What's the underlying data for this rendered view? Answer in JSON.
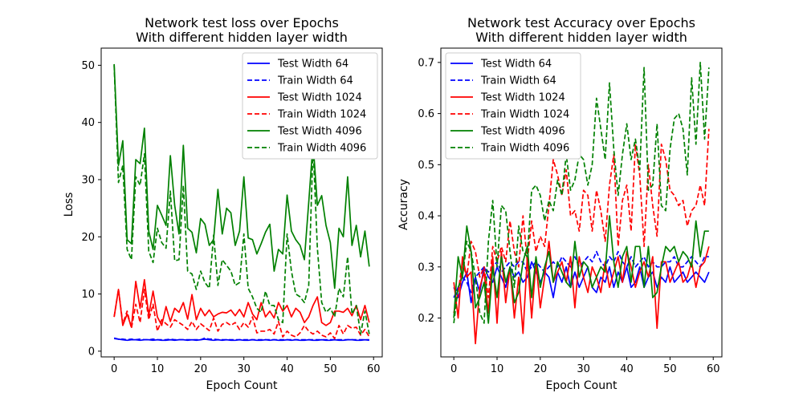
{
  "figure": {
    "background": "#ffffff"
  },
  "chart_data": [
    {
      "type": "line",
      "title_lines": [
        "Network test loss over Epochs",
        "With different hidden layer width"
      ],
      "xlabel": "Epoch Count",
      "ylabel": "Loss",
      "xlim": [
        -3,
        62
      ],
      "ylim": [
        -1,
        53
      ],
      "xticks": [
        0,
        10,
        20,
        30,
        40,
        50,
        60
      ],
      "yticks": [
        0,
        10,
        20,
        30,
        40,
        50
      ],
      "grid": false,
      "legend_position": "top-right",
      "series": [
        {
          "name": "Test Width 64",
          "color": "#0000ff",
          "dashed": false,
          "values": [
            2.2,
            2.1,
            2.0,
            1.9,
            2.0,
            2.0,
            1.9,
            2.0,
            2.0,
            1.9,
            2.0,
            1.9,
            1.9,
            2.0,
            1.9,
            2.0,
            2.0,
            1.9,
            2.0,
            1.9,
            2.0,
            2.1,
            2.0,
            1.9,
            2.0,
            1.9,
            2.0,
            1.9,
            1.9,
            2.0,
            1.9,
            1.9,
            2.0,
            1.9,
            1.9,
            2.0,
            1.9,
            2.0,
            1.9,
            1.9,
            2.0,
            1.9,
            2.0,
            1.9,
            1.9,
            2.0,
            1.9,
            1.9,
            2.0,
            1.9,
            1.9,
            2.0,
            1.9,
            1.9,
            2.0,
            2.0,
            1.9,
            1.9,
            2.0,
            1.9
          ]
        },
        {
          "name": "Train Width 64",
          "color": "#0000ff",
          "dashed": true,
          "values": [
            2.3,
            2.1,
            2.1,
            2.0,
            2.1,
            2.0,
            2.1,
            2.0,
            2.0,
            2.1,
            2.0,
            2.0,
            2.0,
            2.1,
            2.0,
            2.0,
            2.0,
            2.0,
            2.0,
            2.0,
            2.0,
            2.3,
            2.1,
            2.1,
            2.0,
            2.0,
            2.0,
            2.0,
            2.0,
            2.0,
            2.0,
            2.0,
            2.0,
            2.0,
            2.0,
            2.0,
            2.0,
            2.0,
            2.0,
            2.0,
            2.0,
            2.0,
            2.0,
            2.0,
            2.0,
            2.0,
            2.0,
            2.0,
            2.0,
            2.0,
            2.0,
            2.0,
            2.0,
            2.0,
            2.0,
            2.0,
            2.0,
            2.0,
            2.0,
            2.0
          ]
        },
        {
          "name": "Test Width 1024",
          "color": "#ff0000",
          "dashed": false,
          "values": [
            6.0,
            10.8,
            4.5,
            6.5,
            4.2,
            12.2,
            7.5,
            12.5,
            6.3,
            10.5,
            6.0,
            4.5,
            7.8,
            5.2,
            7.5,
            6.8,
            8.5,
            5.6,
            9.9,
            5.5,
            7.5,
            6.2,
            7.2,
            6.0,
            6.5,
            6.8,
            6.7,
            7.2,
            6.2,
            7.3,
            6.0,
            8.5,
            6.5,
            5.5,
            8.5,
            6.0,
            7.0,
            5.8,
            8.5,
            7.0,
            8.0,
            6.0,
            7.5,
            6.8,
            5.0,
            6.0,
            8.0,
            9.5,
            5.0,
            4.5,
            5.0,
            7.0,
            7.0,
            6.8,
            7.5,
            6.2,
            8.0,
            5.5,
            8.0,
            5.0
          ]
        },
        {
          "name": "Train Width 1024",
          "color": "#ff0000",
          "dashed": true,
          "values": [
            6.0,
            10.8,
            4.8,
            7.0,
            4.0,
            8.2,
            5.0,
            10.8,
            5.5,
            8.2,
            3.5,
            5.5,
            4.8,
            4.2,
            5.5,
            5.0,
            4.5,
            3.8,
            5.2,
            3.8,
            4.8,
            4.2,
            3.6,
            5.8,
            3.5,
            4.7,
            5.0,
            4.5,
            5.0,
            3.8,
            5.0,
            4.2,
            6.0,
            3.2,
            3.5,
            3.5,
            3.8,
            3.0,
            5.2,
            2.5,
            3.5,
            2.8,
            2.5,
            3.2,
            4.5,
            3.5,
            3.0,
            3.5,
            2.8,
            2.5,
            3.2,
            2.2,
            4.5,
            3.0,
            4.5,
            4.0,
            4.2,
            2.8,
            3.8,
            2.5
          ]
        },
        {
          "name": "Test Width 4096",
          "color": "#008000",
          "dashed": false,
          "values": [
            50.2,
            32.5,
            36.8,
            19.5,
            18.8,
            33.5,
            32.8,
            39.0,
            21.0,
            17.8,
            25.5,
            23.8,
            22.0,
            34.2,
            25.5,
            20.5,
            36.0,
            21.5,
            20.8,
            17.2,
            23.2,
            22.2,
            18.5,
            19.5,
            28.3,
            20.5,
            25.0,
            24.2,
            18.5,
            21.0,
            30.5,
            19.8,
            19.5,
            17.0,
            18.8,
            20.8,
            22.2,
            14.0,
            17.8,
            17.0,
            27.3,
            21.0,
            19.5,
            18.5,
            16.0,
            26.0,
            36.5,
            25.5,
            27.2,
            22.0,
            19.0,
            11.0,
            21.5,
            20.0,
            30.5,
            18.5,
            22.0,
            16.5,
            21.0,
            14.8
          ]
        },
        {
          "name": "Train Width 4096",
          "color": "#008000",
          "dashed": true,
          "values": [
            50.0,
            29.5,
            32.5,
            17.8,
            16.0,
            30.5,
            29.0,
            34.5,
            17.5,
            15.5,
            21.5,
            19.0,
            18.0,
            28.0,
            15.8,
            16.0,
            29.0,
            14.0,
            13.5,
            10.8,
            14.0,
            12.0,
            11.0,
            20.3,
            11.5,
            16.0,
            15.0,
            14.0,
            11.5,
            12.0,
            20.5,
            11.0,
            9.5,
            7.5,
            6.8,
            10.5,
            8.0,
            8.0,
            5.5,
            5.0,
            20.5,
            14.0,
            10.0,
            9.5,
            8.5,
            11.5,
            36.0,
            18.0,
            8.5,
            6.8,
            7.5,
            6.0,
            11.0,
            9.5,
            16.5,
            6.5,
            8.0,
            3.0,
            7.0,
            3.0
          ]
        }
      ],
      "legend": [
        "Test Width 64",
        "Train Width 64",
        "Test Width 1024",
        "Train Width 1024",
        "Test Width 4096",
        "Train Width 4096"
      ]
    },
    {
      "type": "line",
      "title_lines": [
        "Network test Accuracy over Epochs",
        "With different hidden layer width"
      ],
      "xlabel": "Epoch Count",
      "ylabel": "Accuracy",
      "xlim": [
        -3,
        62
      ],
      "ylim": [
        0.124,
        0.728
      ],
      "xticks": [
        0,
        10,
        20,
        30,
        40,
        50,
        60
      ],
      "yticks": [
        0.2,
        0.3,
        0.4,
        0.5,
        0.6,
        0.7
      ],
      "grid": false,
      "legend_position": "top-left",
      "series": [
        {
          "name": "Test Width 64",
          "color": "#0000ff",
          "dashed": false,
          "values": [
            0.26,
            0.24,
            0.27,
            0.29,
            0.23,
            0.28,
            0.25,
            0.3,
            0.28,
            0.27,
            0.3,
            0.28,
            0.26,
            0.3,
            0.28,
            0.29,
            0.27,
            0.28,
            0.31,
            0.29,
            0.27,
            0.29,
            0.28,
            0.24,
            0.29,
            0.27,
            0.3,
            0.26,
            0.29,
            0.26,
            0.28,
            0.3,
            0.26,
            0.25,
            0.28,
            0.27,
            0.3,
            0.26,
            0.29,
            0.27,
            0.3,
            0.26,
            0.27,
            0.3,
            0.26,
            0.28,
            0.29,
            0.26,
            0.28,
            0.27,
            0.3,
            0.27,
            0.28,
            0.29,
            0.27,
            0.28,
            0.29,
            0.28,
            0.27,
            0.29
          ]
        },
        {
          "name": "Train Width 64",
          "color": "#0000ff",
          "dashed": true,
          "values": [
            0.24,
            0.26,
            0.28,
            0.27,
            0.25,
            0.28,
            0.29,
            0.3,
            0.29,
            0.3,
            0.31,
            0.29,
            0.3,
            0.31,
            0.3,
            0.31,
            0.31,
            0.29,
            0.3,
            0.31,
            0.3,
            0.29,
            0.3,
            0.31,
            0.3,
            0.32,
            0.31,
            0.3,
            0.32,
            0.3,
            0.31,
            0.32,
            0.31,
            0.33,
            0.31,
            0.3,
            0.32,
            0.31,
            0.33,
            0.31,
            0.3,
            0.32,
            0.3,
            0.31,
            0.32,
            0.3,
            0.31,
            0.3,
            0.3,
            0.31,
            0.31,
            0.32,
            0.3,
            0.3,
            0.31,
            0.32,
            0.31,
            0.3,
            0.32,
            0.32
          ]
        },
        {
          "name": "Train Width 1024",
          "color": "#ff0000",
          "dashed": true,
          "values": [
            0.21,
            0.25,
            0.31,
            0.28,
            0.35,
            0.33,
            0.28,
            0.3,
            0.24,
            0.34,
            0.31,
            0.34,
            0.31,
            0.39,
            0.33,
            0.3,
            0.4,
            0.31,
            0.39,
            0.33,
            0.36,
            0.34,
            0.42,
            0.51,
            0.48,
            0.44,
            0.49,
            0.4,
            0.41,
            0.37,
            0.45,
            0.44,
            0.37,
            0.45,
            0.41,
            0.35,
            0.46,
            0.52,
            0.34,
            0.43,
            0.46,
            0.37,
            0.54,
            0.48,
            0.34,
            0.5,
            0.42,
            0.36,
            0.54,
            0.51,
            0.45,
            0.44,
            0.42,
            0.43,
            0.38,
            0.41,
            0.42,
            0.46,
            0.42,
            0.57
          ]
        },
        {
          "name": "Test Width 1024",
          "color": "#ff0000",
          "dashed": false,
          "values": [
            0.27,
            0.2,
            0.32,
            0.28,
            0.29,
            0.15,
            0.26,
            0.29,
            0.21,
            0.32,
            0.19,
            0.33,
            0.23,
            0.3,
            0.2,
            0.28,
            0.17,
            0.32,
            0.2,
            0.31,
            0.22,
            0.28,
            0.35,
            0.27,
            0.29,
            0.31,
            0.27,
            0.32,
            0.22,
            0.32,
            0.28,
            0.25,
            0.3,
            0.28,
            0.25,
            0.31,
            0.26,
            0.29,
            0.32,
            0.27,
            0.33,
            0.3,
            0.26,
            0.29,
            0.31,
            0.28,
            0.32,
            0.18,
            0.31,
            0.31,
            0.27,
            0.29,
            0.31,
            0.27,
            0.28,
            0.31,
            0.26,
            0.3,
            0.31,
            0.34
          ]
        },
        {
          "name": "Test Width 4096",
          "color": "#008000",
          "dashed": false,
          "values": [
            0.2,
            0.32,
            0.28,
            0.38,
            0.33,
            0.22,
            0.24,
            0.27,
            0.19,
            0.3,
            0.24,
            0.32,
            0.27,
            0.3,
            0.23,
            0.25,
            0.31,
            0.34,
            0.24,
            0.32,
            0.26,
            0.3,
            0.33,
            0.27,
            0.31,
            0.29,
            0.27,
            0.26,
            0.35,
            0.28,
            0.31,
            0.3,
            0.26,
            0.28,
            0.3,
            0.29,
            0.4,
            0.31,
            0.26,
            0.32,
            0.34,
            0.27,
            0.34,
            0.34,
            0.26,
            0.34,
            0.24,
            0.25,
            0.3,
            0.34,
            0.33,
            0.34,
            0.31,
            0.33,
            0.32,
            0.3,
            0.39,
            0.32,
            0.37,
            0.37
          ]
        },
        {
          "name": "Train Width 4096",
          "color": "#008000",
          "dashed": true,
          "values": [
            0.19,
            0.26,
            0.28,
            0.35,
            0.33,
            0.28,
            0.21,
            0.19,
            0.35,
            0.43,
            0.3,
            0.42,
            0.41,
            0.33,
            0.26,
            0.38,
            0.33,
            0.32,
            0.45,
            0.46,
            0.44,
            0.39,
            0.43,
            0.41,
            0.47,
            0.44,
            0.52,
            0.45,
            0.47,
            0.52,
            0.51,
            0.46,
            0.5,
            0.63,
            0.57,
            0.51,
            0.66,
            0.53,
            0.44,
            0.52,
            0.58,
            0.51,
            0.55,
            0.49,
            0.69,
            0.45,
            0.46,
            0.58,
            0.42,
            0.41,
            0.53,
            0.59,
            0.6,
            0.57,
            0.48,
            0.67,
            0.54,
            0.7,
            0.55,
            0.69
          ]
        }
      ],
      "legend": [
        "Test Width 64",
        "Train Width 64",
        "Test Width 1024",
        "Train Width 1024",
        "Test Width 4096",
        "Train Width 4096"
      ]
    }
  ]
}
